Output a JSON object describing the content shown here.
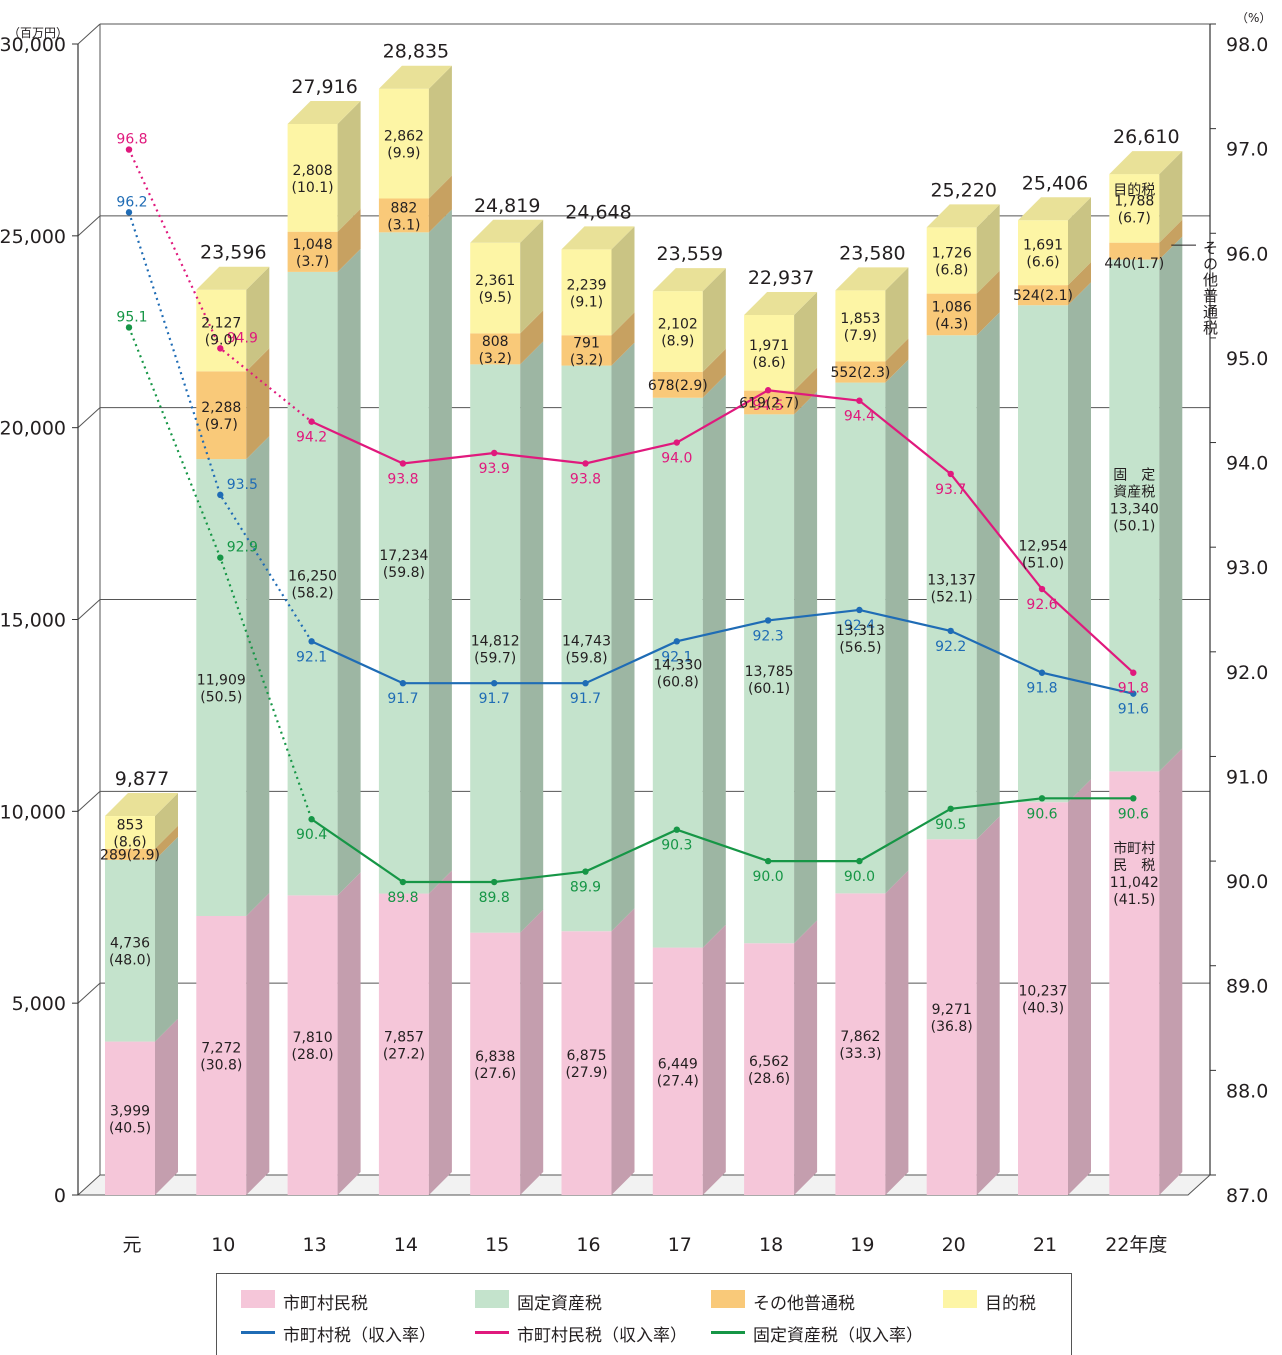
{
  "chart_data": {
    "type": "bar",
    "stacked": true,
    "left_axis_unit": "（百万円）",
    "right_axis_unit": "（%）",
    "left_ticks": [
      "0",
      "5,000",
      "10,000",
      "15,000",
      "20,000",
      "25,000",
      "30,000"
    ],
    "right_ticks": [
      "87.0",
      "88.0",
      "89.0",
      "90.0",
      "91.0",
      "92.0",
      "93.0",
      "94.0",
      "95.0",
      "96.0",
      "97.0",
      "98.0"
    ],
    "ylim_left": [
      0,
      30000
    ],
    "ylim_right": [
      87.0,
      98.0
    ],
    "categories": [
      "元",
      "10",
      "13",
      "14",
      "15",
      "16",
      "17",
      "18",
      "19",
      "20",
      "21",
      "22年度"
    ],
    "totals": [
      "9,877",
      "23,596",
      "27,916",
      "28,835",
      "24,819",
      "24,648",
      "23,559",
      "22,937",
      "23,580",
      "25,220",
      "25,406",
      "26,610"
    ],
    "series": [
      {
        "name": "市町村民税",
        "color": "#f5c6d9",
        "values": [
          3999,
          7272,
          7810,
          7857,
          6838,
          6875,
          6449,
          6562,
          7862,
          9271,
          10237,
          11042
        ],
        "value_labels": [
          "3,999",
          "7,272",
          "7,810",
          "7,857",
          "6,838",
          "6,875",
          "6,449",
          "6,562",
          "7,862",
          "9,271",
          "10,237",
          "11,042"
        ],
        "share_labels": [
          "(40.5)",
          "(30.8)",
          "(28.0)",
          "(27.2)",
          "(27.6)",
          "(27.9)",
          "(27.4)",
          "(28.6)",
          "(33.3)",
          "(36.8)",
          "(40.3)",
          "(41.5)"
        ]
      },
      {
        "name": "固定資産税",
        "color": "#c4e3cc",
        "values": [
          4736,
          11909,
          16250,
          17234,
          14812,
          14743,
          14330,
          13785,
          13313,
          13137,
          12954,
          13340
        ],
        "value_labels": [
          "4,736",
          "11,909",
          "16,250",
          "17,234",
          "14,812",
          "14,743",
          "14,330",
          "13,785",
          "13,313",
          "13,137",
          "12,954",
          "13,340"
        ],
        "share_labels": [
          "(48.0)",
          "(50.5)",
          "(58.2)",
          "(59.8)",
          "(59.7)",
          "(59.8)",
          "(60.8)",
          "(60.1)",
          "(56.5)",
          "(52.1)",
          "(51.0)",
          "(50.1)"
        ]
      },
      {
        "name": "その他普通税",
        "color": "#f9c979",
        "values": [
          289,
          2288,
          1048,
          882,
          808,
          791,
          678,
          619,
          552,
          1086,
          524,
          440
        ],
        "value_labels": [
          "289",
          "2,288",
          "1,048",
          "882",
          "808",
          "791",
          "678",
          "619",
          "552",
          "1,086",
          "524",
          "440"
        ],
        "share_labels": [
          "(2.9)",
          "(9.7)",
          "(3.7)",
          "(3.1)",
          "(3.2)",
          "(3.2)",
          "(2.9)",
          "(2.7)",
          "(2.3)",
          "(4.3)",
          "(2.1)",
          "(1.7)"
        ]
      },
      {
        "name": "目的税",
        "color": "#fdf5a5",
        "values": [
          853,
          2127,
          2808,
          2862,
          2361,
          2239,
          2102,
          1971,
          1853,
          1726,
          1691,
          1788
        ],
        "value_labels": [
          "853",
          "2,127",
          "2,808",
          "2,862",
          "2,361",
          "2,239",
          "2,102",
          "1,971",
          "1,853",
          "1,726",
          "1,691",
          "1,788"
        ],
        "share_labels": [
          "(8.6)",
          "(9.0)",
          "(10.1)",
          "(9.9)",
          "(9.5)",
          "(9.1)",
          "(8.9)",
          "(8.6)",
          "(7.9)",
          "(6.8)",
          "(6.6)",
          "(6.7)"
        ]
      }
    ],
    "line_series": [
      {
        "name": "市町村税（収入率）",
        "color": "#1f6cb5",
        "values": [
          96.2,
          93.5,
          92.1,
          91.7,
          91.7,
          91.7,
          92.1,
          92.3,
          92.4,
          92.2,
          91.8,
          91.6
        ],
        "labels": [
          "96.2",
          "93.5",
          "92.1",
          "91.7",
          "91.7",
          "91.7",
          "92.1",
          "92.3",
          "92.4",
          "92.2",
          "91.8",
          "91.6"
        ],
        "dotted_until": 2
      },
      {
        "name": "市町村民税（収入率）",
        "color": "#e0197d",
        "values": [
          96.8,
          94.9,
          94.2,
          93.8,
          93.9,
          93.8,
          94.0,
          94.5,
          94.4,
          93.7,
          92.6,
          91.8
        ],
        "labels": [
          "96.8",
          "94.9",
          "94.2",
          "93.8",
          "93.9",
          "93.8",
          "94.0",
          "94.5",
          "94.4",
          "93.7",
          "92.6",
          "91.8"
        ],
        "dotted_until": 2
      },
      {
        "name": "固定資産税（収入率）",
        "color": "#169646",
        "values": [
          95.1,
          92.9,
          90.4,
          89.8,
          89.8,
          89.9,
          90.3,
          90.0,
          90.0,
          90.5,
          90.6,
          90.6
        ],
        "labels": [
          "95.1",
          "92.9",
          "90.4",
          "89.8",
          "89.8",
          "89.9",
          "90.3",
          "90.0",
          "90.0",
          "90.5",
          "90.6",
          "90.6"
        ],
        "dotted_until": 2
      }
    ],
    "last_bar_annotations": {
      "mokuteki": "目的税",
      "sonota_vertical": "その他普通税",
      "kotei_line1": "固　定",
      "kotei_line2": "資産税",
      "shimin_line1": "市町村",
      "shimin_line2": "民　税"
    },
    "legend": [
      {
        "label": "市町村民税",
        "kind": "bar",
        "color": "#f5c6d9"
      },
      {
        "label": "固定資産税",
        "kind": "bar",
        "color": "#c4e3cc"
      },
      {
        "label": "その他普通税",
        "kind": "bar",
        "color": "#f9c979"
      },
      {
        "label": "目的税",
        "kind": "bar",
        "color": "#fdf5a5"
      },
      {
        "label": "市町村税（収入率）",
        "kind": "line",
        "color": "#1f6cb5"
      },
      {
        "label": "市町村民税（収入率）",
        "kind": "line",
        "color": "#e0197d"
      },
      {
        "label": "固定資産税（収入率）",
        "kind": "line",
        "color": "#169646"
      }
    ],
    "grid": true,
    "legend_position": "bottom"
  }
}
